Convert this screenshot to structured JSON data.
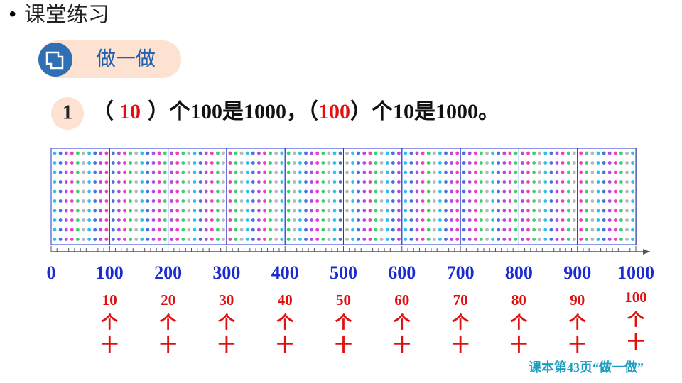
{
  "header": {
    "bullet": "•",
    "title": "课堂练习"
  },
  "badge": {
    "label": "做一做"
  },
  "question": {
    "number": "1",
    "parts": [
      "（",
      "10",
      "）个100是1000，（",
      "100",
      "）个10是1000。"
    ]
  },
  "number_line": {
    "labels": [
      "0",
      "100",
      "200",
      "300",
      "400",
      "500",
      "600",
      "700",
      "800",
      "900",
      "1000"
    ]
  },
  "tens": {
    "counts": [
      "10",
      "20",
      "30",
      "40",
      "50",
      "60",
      "70",
      "80",
      "90",
      "100"
    ],
    "unit_chars": [
      "个",
      "十"
    ]
  },
  "footer": {
    "source": "课本第43页“做一做”"
  }
}
